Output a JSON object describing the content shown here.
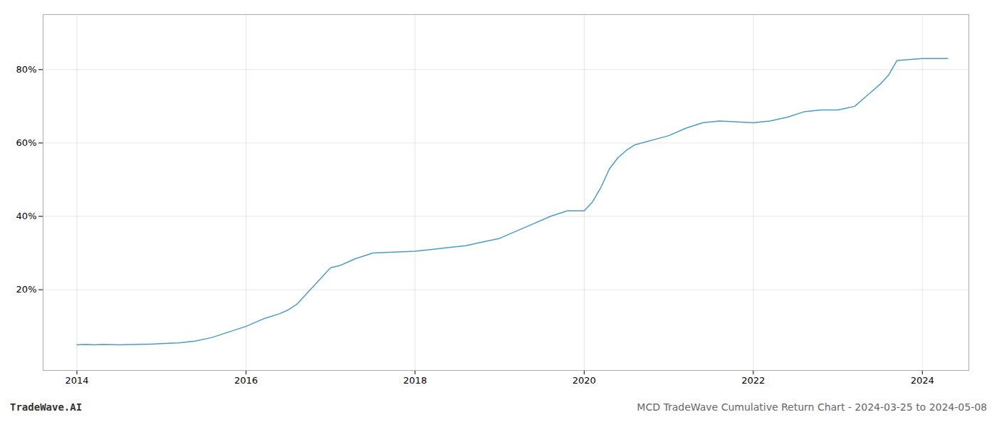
{
  "chart_data": {
    "type": "line",
    "title": "MCD TradeWave Cumulative Return Chart - 2024-03-25 to 2024-05-08",
    "annotations": [
      "TradeWave.AI"
    ],
    "color": "#4a9cc7",
    "x": [
      2014.0,
      2014.1,
      2014.2,
      2014.3,
      2014.5,
      2014.7,
      2014.9,
      2015.0,
      2015.1,
      2015.2,
      2015.4,
      2015.6,
      2015.8,
      2016.0,
      2016.2,
      2016.4,
      2016.5,
      2016.6,
      2017.0,
      2017.1,
      2017.2,
      2017.3,
      2017.5,
      2018.0,
      2018.2,
      2018.4,
      2018.6,
      2018.8,
      2019.0,
      2019.2,
      2019.4,
      2019.6,
      2019.8,
      2020.0,
      2020.1,
      2020.2,
      2020.3,
      2020.4,
      2020.5,
      2020.6,
      2021.0,
      2021.2,
      2021.4,
      2021.6,
      2022.0,
      2022.2,
      2022.4,
      2022.6,
      2022.8,
      2023.0,
      2023.1,
      2023.2,
      2023.3,
      2023.4,
      2023.5,
      2023.6,
      2023.7,
      2024.0,
      2024.1,
      2024.3
    ],
    "values": [
      5.0,
      5.1,
      5.0,
      5.1,
      5.0,
      5.1,
      5.2,
      5.3,
      5.4,
      5.5,
      6.0,
      7.0,
      8.5,
      10.0,
      12.0,
      13.5,
      14.5,
      16.0,
      26.0,
      26.5,
      27.5,
      28.5,
      30.0,
      30.5,
      31.0,
      31.5,
      32.0,
      33.0,
      34.0,
      36.0,
      38.0,
      40.0,
      41.5,
      41.5,
      44.0,
      48.0,
      53.0,
      56.0,
      58.0,
      59.5,
      62.0,
      64.0,
      65.5,
      66.0,
      65.5,
      66.0,
      67.0,
      68.5,
      69.0,
      69.0,
      69.5,
      70.0,
      72.0,
      74.0,
      76.0,
      78.5,
      82.5,
      83.0,
      83.0,
      83.0
    ],
    "xlim": [
      2013.6,
      2024.55
    ],
    "xticks": [
      2014,
      2016,
      2018,
      2020,
      2022,
      2024
    ],
    "ylim": [
      -2,
      95
    ],
    "yticks": [
      {
        "value": 20,
        "label": "20%"
      },
      {
        "value": 40,
        "label": "40%"
      },
      {
        "value": 60,
        "label": "60%"
      },
      {
        "value": 80,
        "label": "80%"
      }
    ],
    "grid": true
  }
}
